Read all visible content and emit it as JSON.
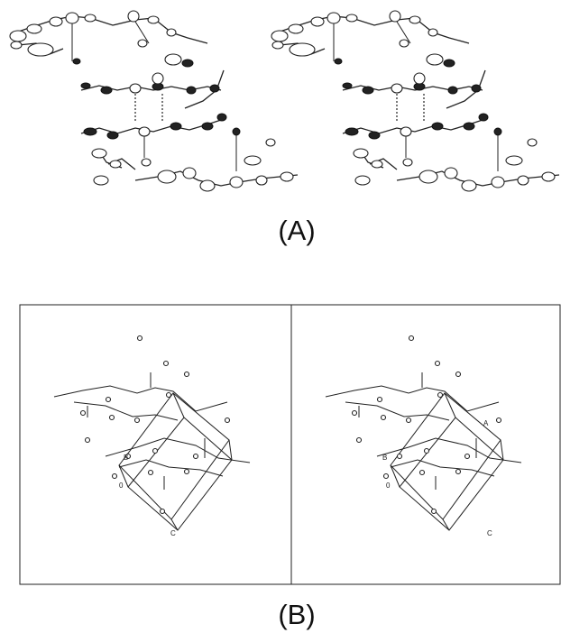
{
  "panel_a": {
    "label": "(A)"
  },
  "panel_b": {
    "label": "(B)",
    "left_axis_labels": [
      "B",
      "0",
      "C"
    ],
    "right_axis_labels": [
      "A",
      "B",
      "0",
      "C"
    ]
  }
}
